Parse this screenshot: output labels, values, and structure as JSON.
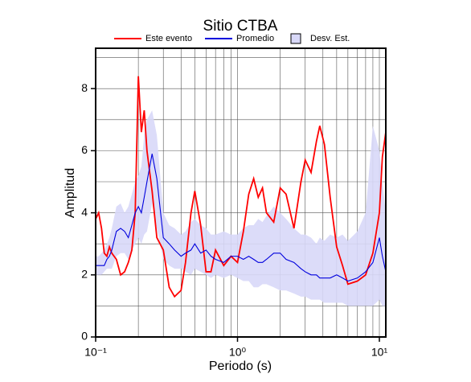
{
  "chart_data": {
    "type": "line",
    "title": "Sitio CTBA",
    "xlabel": "Periodo (s)",
    "ylabel": "Amplitud",
    "xscale": "log",
    "grid": true,
    "xlim": [
      0.1,
      11.1
    ],
    "ylim": [
      0,
      9.3
    ],
    "xticks": [
      {
        "value": 0.1,
        "label": "10⁻¹"
      },
      {
        "value": 1,
        "label": "10⁰"
      },
      {
        "value": 10,
        "label": "10¹"
      }
    ],
    "xminorticks": [
      0.2,
      0.3,
      0.4,
      0.5,
      0.6,
      0.7,
      0.8,
      0.9,
      2,
      3,
      4,
      5,
      6,
      7,
      8,
      9
    ],
    "yticks": [
      0,
      2,
      4,
      6,
      8
    ],
    "yminorticks": [
      1,
      3,
      5,
      7,
      9
    ],
    "x": [
      0.1,
      0.105,
      0.11,
      0.115,
      0.12,
      0.125,
      0.13,
      0.14,
      0.15,
      0.16,
      0.17,
      0.18,
      0.19,
      0.2,
      0.21,
      0.22,
      0.23,
      0.25,
      0.27,
      0.3,
      0.33,
      0.36,
      0.4,
      0.43,
      0.47,
      0.5,
      0.55,
      0.6,
      0.65,
      0.7,
      0.8,
      0.9,
      1.0,
      1.1,
      1.2,
      1.3,
      1.4,
      1.5,
      1.6,
      1.8,
      2.0,
      2.2,
      2.5,
      2.8,
      3.0,
      3.3,
      3.6,
      3.8,
      4.1,
      4.5,
      5.0,
      5.5,
      6.0,
      7.0,
      8.0,
      9.0,
      10.0,
      10.5,
      11.1
    ],
    "band": {
      "name": "Desv. Est.",
      "color": "#d8d8f8",
      "high": [
        2.6,
        2.6,
        2.7,
        2.8,
        3.0,
        3.2,
        3.5,
        4.2,
        4.3,
        4.0,
        4.2,
        4.6,
        5.0,
        5.2,
        5.5,
        6.5,
        7.0,
        7.3,
        6.5,
        4.0,
        3.6,
        3.5,
        3.3,
        3.4,
        3.7,
        3.8,
        3.6,
        3.5,
        3.3,
        3.3,
        3.4,
        3.3,
        3.3,
        3.5,
        3.6,
        3.6,
        3.8,
        3.7,
        3.9,
        4.2,
        4.0,
        3.8,
        3.5,
        3.3,
        3.3,
        3.2,
        3.0,
        3.2,
        3.1,
        3.3,
        3.2,
        3.3,
        3.1,
        3.4,
        4.0,
        6.8,
        6.0,
        5.0,
        4.0
      ],
      "low": [
        2.0,
        2.0,
        2.0,
        2.1,
        2.2,
        2.2,
        2.2,
        2.6,
        2.7,
        2.7,
        2.5,
        2.8,
        3.0,
        3.2,
        3.0,
        3.3,
        3.4,
        4.3,
        3.5,
        2.5,
        2.3,
        2.2,
        2.2,
        2.1,
        2.0,
        2.2,
        2.1,
        2.0,
        1.9,
        2.0,
        1.9,
        2.0,
        1.9,
        1.8,
        1.8,
        1.6,
        1.6,
        1.7,
        1.7,
        1.6,
        1.5,
        1.5,
        1.4,
        1.3,
        1.3,
        1.2,
        1.2,
        1.2,
        1.1,
        1.1,
        1.1,
        1.1,
        1.0,
        1.0,
        1.0,
        1.0,
        1.2,
        1.0,
        1.0
      ]
    },
    "series": [
      {
        "name": "Este evento",
        "color": "#ff0000",
        "values": [
          3.8,
          4.0,
          3.5,
          2.7,
          2.6,
          2.9,
          2.7,
          2.5,
          2.0,
          2.1,
          2.4,
          2.8,
          4.0,
          8.4,
          6.6,
          7.3,
          6.0,
          4.7,
          3.2,
          2.8,
          1.6,
          1.3,
          1.5,
          2.4,
          4.0,
          4.7,
          3.6,
          2.1,
          2.1,
          2.8,
          2.3,
          2.6,
          2.4,
          3.4,
          4.6,
          5.1,
          4.5,
          4.8,
          4.0,
          3.7,
          4.8,
          4.6,
          3.5,
          5.0,
          5.7,
          5.3,
          6.3,
          6.8,
          6.2,
          4.5,
          2.9,
          2.3,
          1.7,
          1.8,
          2.0,
          2.7,
          4.0,
          5.8,
          6.6
        ]
      },
      {
        "name": "Promedio",
        "color": "#0000dd",
        "values": [
          2.3,
          2.3,
          2.3,
          2.3,
          2.5,
          2.6,
          2.8,
          3.4,
          3.5,
          3.4,
          3.2,
          3.6,
          4.0,
          4.2,
          4.0,
          4.5,
          5.0,
          5.9,
          5.1,
          3.2,
          3.0,
          2.8,
          2.6,
          2.7,
          2.8,
          3.0,
          2.7,
          2.8,
          2.6,
          2.5,
          2.4,
          2.6,
          2.6,
          2.5,
          2.6,
          2.5,
          2.4,
          2.4,
          2.5,
          2.7,
          2.7,
          2.5,
          2.4,
          2.2,
          2.1,
          2.0,
          2.0,
          1.9,
          1.9,
          1.9,
          2.0,
          1.9,
          1.8,
          1.9,
          2.1,
          2.4,
          3.2,
          2.6,
          2.1
        ]
      }
    ]
  }
}
